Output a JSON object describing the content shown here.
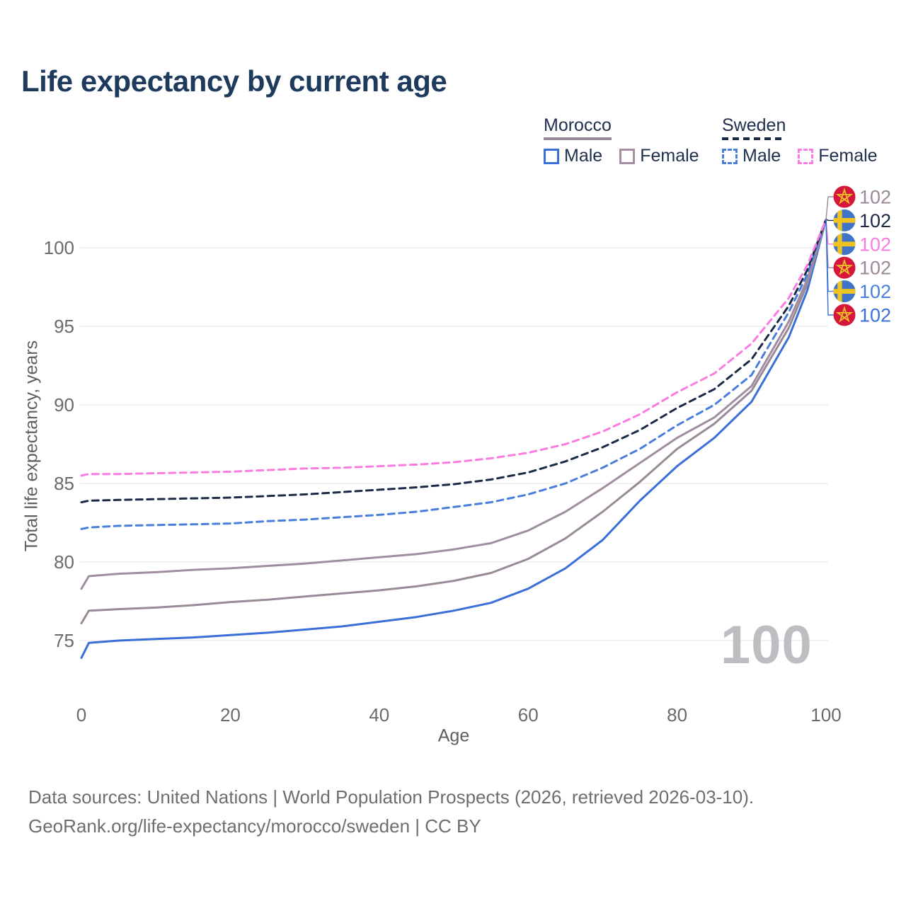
{
  "title": "Life expectancy by current age",
  "legend": {
    "groups": [
      {
        "country": "Morocco",
        "line_style": "solid",
        "underline_color": "#998a98",
        "items": [
          {
            "label": "Male",
            "box_color": "#3a6fd8",
            "box_style": "solid"
          },
          {
            "label": "Female",
            "box_color": "#a48fa3",
            "box_style": "solid"
          }
        ]
      },
      {
        "country": "Sweden",
        "line_style": "dashed",
        "underline_color": "#1b2b45",
        "items": [
          {
            "label": "Male",
            "box_color": "#4a7edb",
            "box_style": "dashed"
          },
          {
            "label": "Female",
            "box_color": "#fb7ce1",
            "box_style": "dashed"
          }
        ]
      }
    ]
  },
  "chart_data": {
    "type": "line",
    "title": "Life expectancy by current age",
    "xlabel": "Age",
    "ylabel": "Total life expectancy, years",
    "xlim": [
      0,
      100
    ],
    "ylim": [
      73,
      103
    ],
    "x_ticks": [
      0,
      20,
      40,
      60,
      80,
      100
    ],
    "y_ticks": [
      75,
      80,
      85,
      90,
      95,
      100
    ],
    "grid": "horizontal",
    "legend_position": "top-right",
    "watermark": "100",
    "x": [
      0,
      1,
      5,
      10,
      15,
      20,
      25,
      30,
      35,
      40,
      45,
      50,
      55,
      60,
      65,
      70,
      75,
      80,
      85,
      90,
      95,
      97.5,
      100
    ],
    "series": [
      {
        "id": "morocco-male",
        "name": "Morocco Male",
        "country": "Morocco",
        "sex": "Male",
        "color": "#3a6fd8",
        "style": "solid",
        "values": [
          73.9,
          74.85,
          75.0,
          75.1,
          75.2,
          75.35,
          75.5,
          75.7,
          75.9,
          76.2,
          76.5,
          76.9,
          77.4,
          78.3,
          79.6,
          81.4,
          83.9,
          86.1,
          87.9,
          90.2,
          94.3,
          97.3,
          101.8
        ]
      },
      {
        "id": "morocco-total",
        "name": "Morocco",
        "country": "Morocco",
        "sex": "Both",
        "color": "#998a98",
        "style": "solid",
        "values": [
          76.1,
          76.9,
          77.0,
          77.1,
          77.25,
          77.45,
          77.6,
          77.8,
          78.0,
          78.2,
          78.45,
          78.8,
          79.3,
          80.2,
          81.5,
          83.2,
          85.1,
          87.2,
          88.8,
          90.9,
          94.9,
          97.7,
          101.8
        ]
      },
      {
        "id": "morocco-female",
        "name": "Morocco Female",
        "country": "Morocco",
        "sex": "Female",
        "color": "#a18da0",
        "style": "solid",
        "values": [
          78.3,
          79.1,
          79.25,
          79.35,
          79.5,
          79.6,
          79.75,
          79.9,
          80.1,
          80.3,
          80.5,
          80.8,
          81.2,
          82.0,
          83.2,
          84.7,
          86.3,
          87.9,
          89.2,
          91.2,
          95.3,
          98.0,
          101.8
        ]
      },
      {
        "id": "sweden-male",
        "name": "Sweden Male",
        "country": "Sweden",
        "sex": "Male",
        "color": "#4a7edb",
        "style": "dashed",
        "values": [
          82.1,
          82.2,
          82.3,
          82.35,
          82.4,
          82.45,
          82.6,
          82.7,
          82.85,
          83.0,
          83.2,
          83.5,
          83.8,
          84.3,
          85.0,
          86.0,
          87.2,
          88.7,
          90.0,
          91.9,
          95.9,
          98.3,
          101.8
        ]
      },
      {
        "id": "sweden-total",
        "name": "Sweden",
        "country": "Sweden",
        "sex": "Both",
        "color": "#1b2b45",
        "style": "dashed",
        "values": [
          83.8,
          83.9,
          83.95,
          84.0,
          84.05,
          84.1,
          84.2,
          84.3,
          84.45,
          84.6,
          84.75,
          84.95,
          85.25,
          85.7,
          86.4,
          87.3,
          88.4,
          89.8,
          91.0,
          92.9,
          96.3,
          98.6,
          101.8
        ]
      },
      {
        "id": "sweden-female",
        "name": "Sweden Female",
        "country": "Sweden",
        "sex": "Female",
        "color": "#fb7ce1",
        "style": "dashed",
        "values": [
          85.5,
          85.6,
          85.6,
          85.65,
          85.7,
          85.75,
          85.85,
          85.95,
          86.0,
          86.1,
          86.2,
          86.35,
          86.6,
          86.95,
          87.5,
          88.3,
          89.4,
          90.8,
          92.0,
          93.9,
          96.8,
          98.9,
          101.8
        ]
      }
    ],
    "end_value": 101.8,
    "end_labels": [
      {
        "flag": "morocco",
        "series": "Morocco Female",
        "value": "102",
        "color": "#9a8a99"
      },
      {
        "flag": "sweden",
        "series": "Sweden",
        "value": "102",
        "color": "#1b2b45"
      },
      {
        "flag": "sweden",
        "series": "Sweden Female",
        "value": "102",
        "color": "#fb7ce1"
      },
      {
        "flag": "morocco",
        "series": "Morocco",
        "value": "102",
        "color": "#9a8a99"
      },
      {
        "flag": "sweden",
        "series": "Sweden Male",
        "value": "102",
        "color": "#4a7edb"
      },
      {
        "flag": "morocco",
        "series": "Morocco Male",
        "value": "102",
        "color": "#3a6fd8"
      }
    ],
    "flag_colors": {
      "morocco_circle": "#d6173b",
      "morocco_star": "#e9c227",
      "sweden_circle": "#3f74c9",
      "sweden_cross": "#f0c420"
    }
  },
  "footer": {
    "line1": "Data sources: United Nations | World Population Prospects (2026, retrieved 2026-03-10).",
    "line2": "GeoRank.org/life-expectancy/morocco/sweden | CC BY"
  }
}
